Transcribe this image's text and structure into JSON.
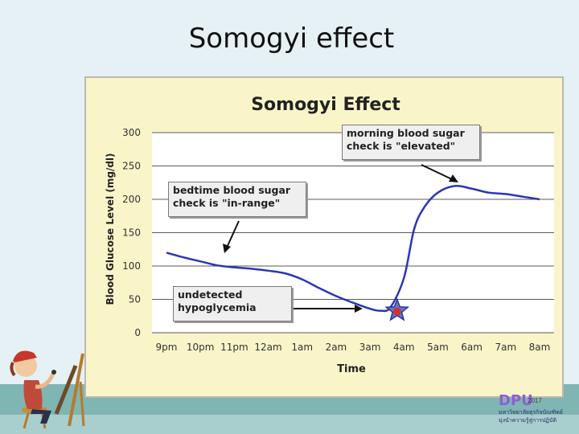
{
  "slide": {
    "title": "Somogyi effect"
  },
  "chart_data": {
    "type": "line",
    "title": "Somogyi Effect",
    "xlabel": "Time",
    "ylabel": "Blood Glucose Level (mg/dl)",
    "categories": [
      "9pm",
      "10pm",
      "11pm",
      "12am",
      "1am",
      "2am",
      "3am",
      "4am",
      "5am",
      "6am",
      "7am",
      "8am"
    ],
    "y_ticks": [
      0,
      50,
      100,
      150,
      200,
      250,
      300
    ],
    "ylim": [
      0,
      300
    ],
    "grid": true,
    "x": [
      0,
      0.5,
      1,
      1.5,
      2,
      2.5,
      3,
      3.5,
      4,
      4.5,
      5,
      5.5,
      6,
      6.3,
      6.6,
      7,
      7.3,
      7.6,
      8,
      8.5,
      9,
      9.5,
      10,
      10.5,
      11
    ],
    "values": [
      120,
      113,
      107,
      101,
      98,
      96,
      93,
      89,
      80,
      67,
      55,
      45,
      36,
      33,
      38,
      82,
      155,
      188,
      210,
      220,
      216,
      210,
      208,
      204,
      200
    ],
    "line_color": "#2a37b4",
    "marker": {
      "x": 6.8,
      "y": 33,
      "shape": "star",
      "color": "#d4312c",
      "outline": "#27349e"
    },
    "annotations": [
      {
        "lines": [
          "morning blood sugar",
          "check is \"elevated\""
        ]
      },
      {
        "lines": [
          "bedtime blood sugar",
          "check is \"in-range\""
        ]
      },
      {
        "lines": [
          "undetected",
          "hypoglycemia"
        ]
      }
    ]
  },
  "logo": {
    "mark": "DPU",
    "year": "2017",
    "line1": "มหาวิทยาลัยธุรกิจบัณฑิตย์",
    "line2": "มุ่งนำความรู้สู่การปฏิบัติ"
  },
  "colors": {
    "background": "#e5f1f4",
    "plot_background": "#ffffff",
    "chart_background": "#faf5c9"
  }
}
